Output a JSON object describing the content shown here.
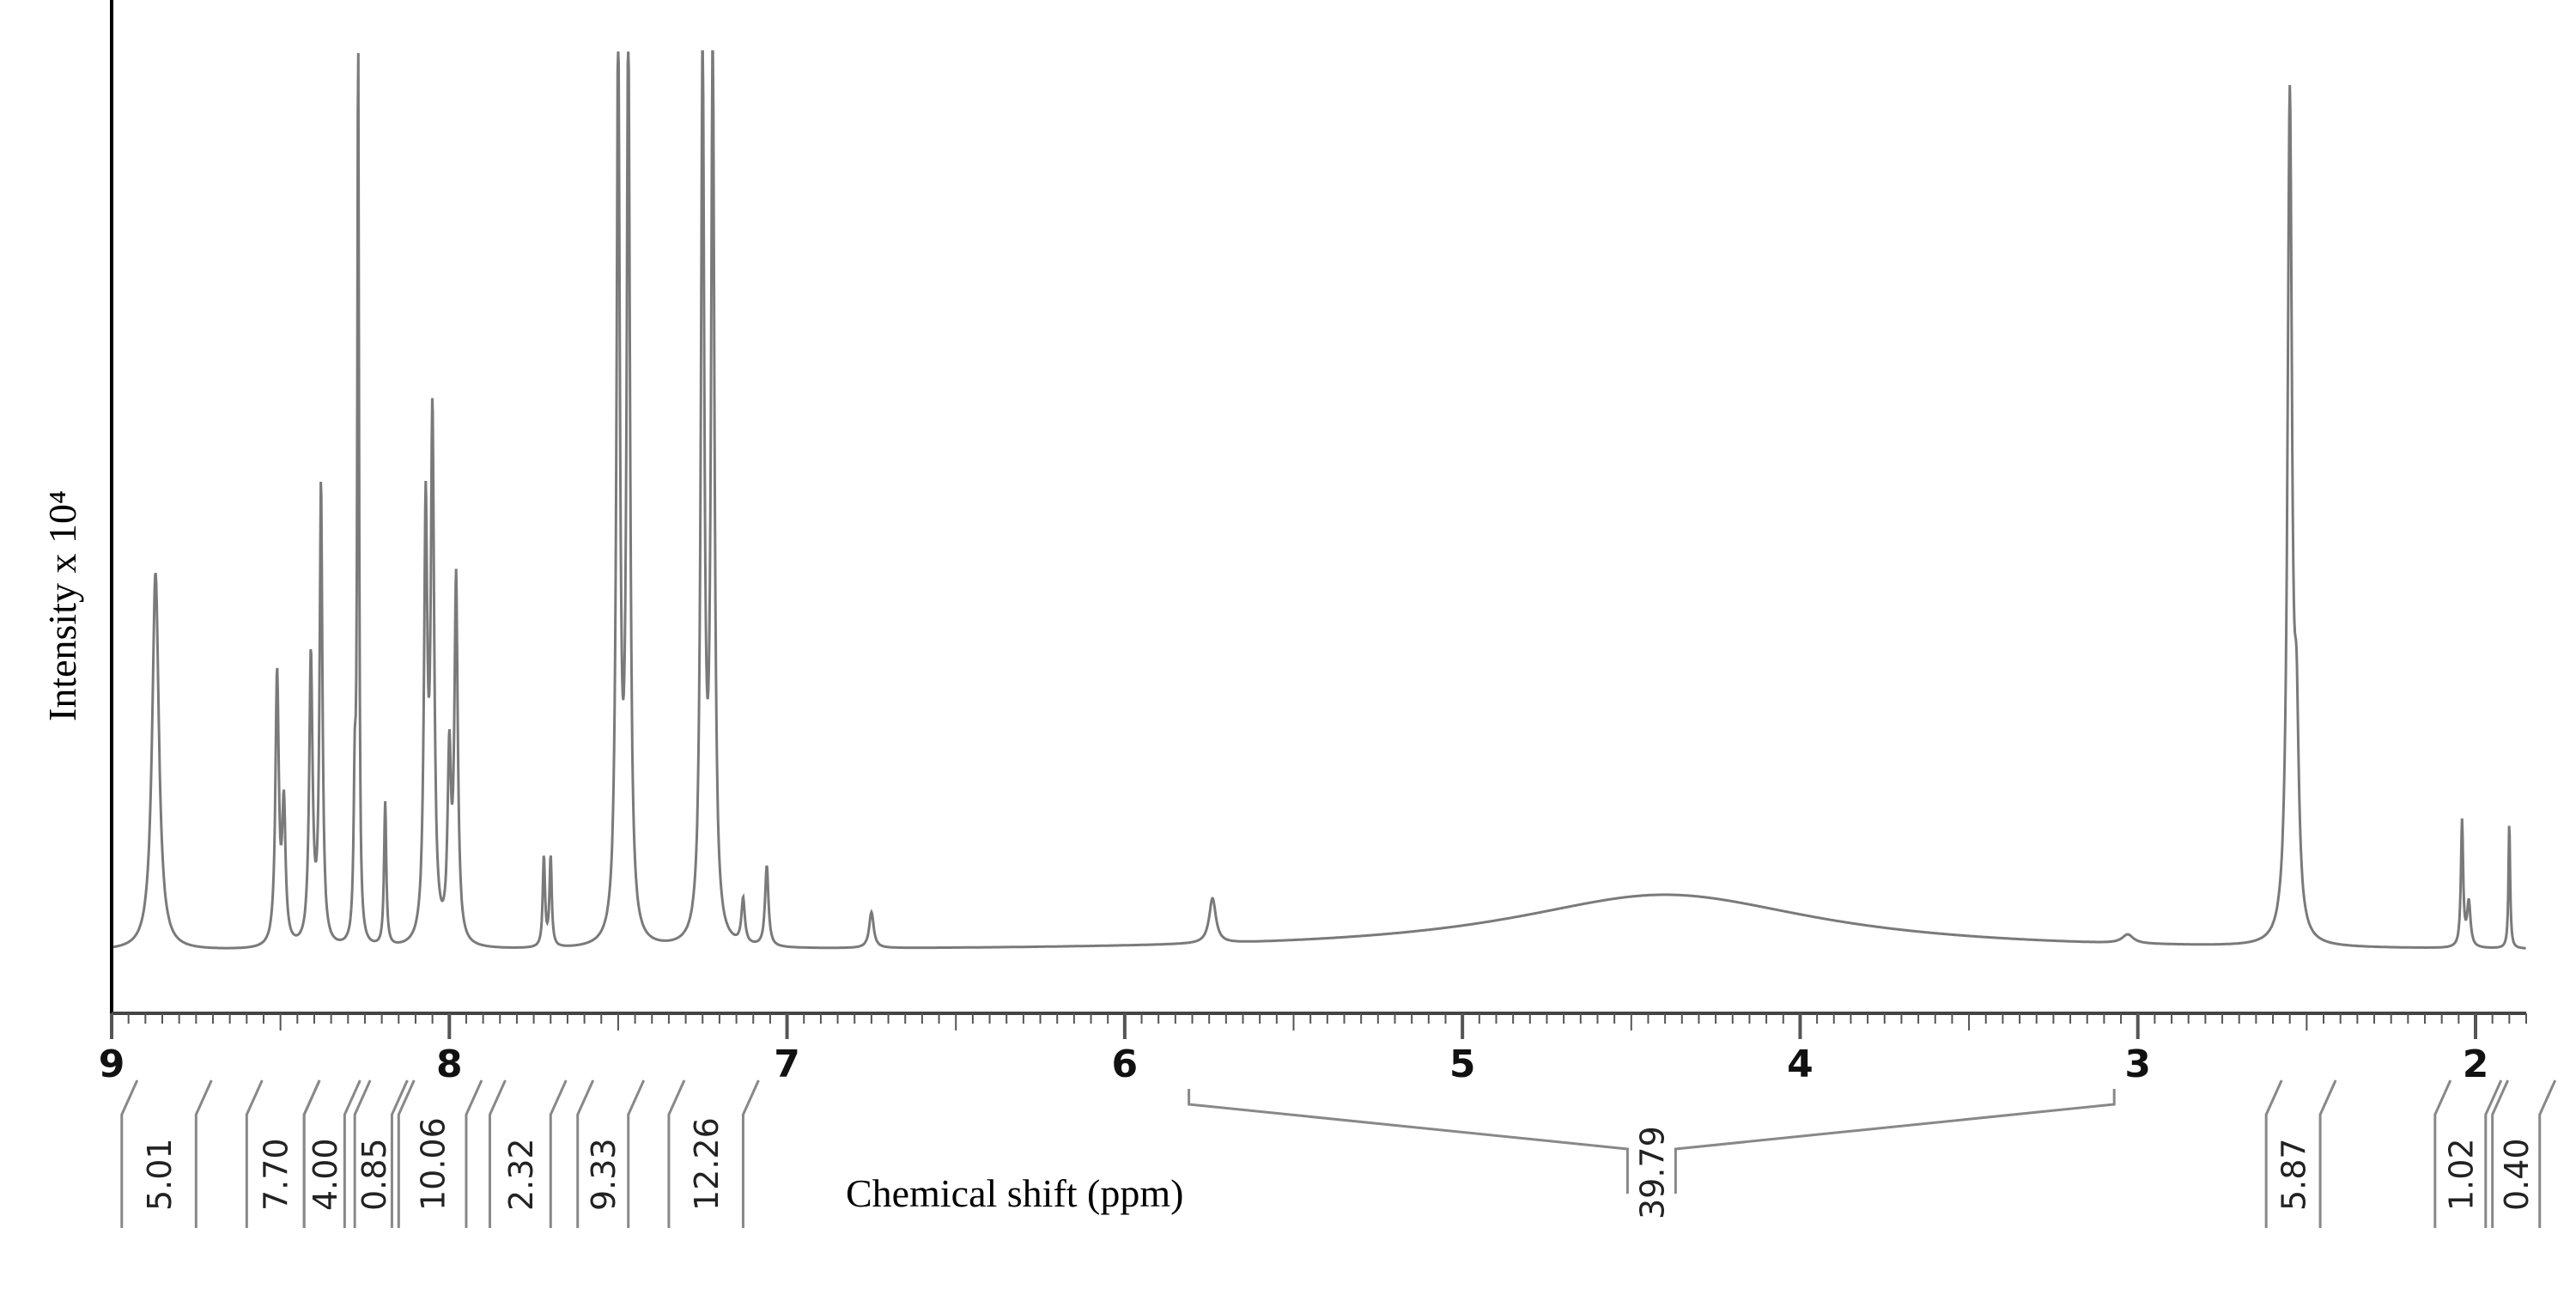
{
  "chart_data": {
    "type": "line",
    "xlabel": "Chemical shift (ppm)",
    "ylabel": "Intensity x 10⁴",
    "x_reversed": true,
    "xlim": [
      9.0,
      1.85
    ],
    "ylim": [
      -0.05,
      1.0
    ],
    "x_ticks": [
      "9",
      "8",
      "7",
      "6",
      "5",
      "4",
      "3",
      "2"
    ],
    "grid": false,
    "baseline": 0.0,
    "series": [
      {
        "peaks": [
          {
            "x": 8.87,
            "height": 0.42,
            "width": 0.012
          },
          {
            "x": 8.51,
            "height": 0.3,
            "width": 0.006
          },
          {
            "x": 8.49,
            "height": 0.15,
            "width": 0.006
          },
          {
            "x": 8.41,
            "height": 0.32,
            "width": 0.006
          },
          {
            "x": 8.38,
            "height": 0.51,
            "width": 0.005
          },
          {
            "x": 8.28,
            "height": 0.16,
            "width": 0.004
          },
          {
            "x": 8.27,
            "height": 1.0,
            "width": 0.003
          },
          {
            "x": 8.19,
            "height": 0.16,
            "width": 0.004
          },
          {
            "x": 8.07,
            "height": 0.47,
            "width": 0.006
          },
          {
            "x": 8.05,
            "height": 0.57,
            "width": 0.006
          },
          {
            "x": 8.0,
            "height": 0.2,
            "width": 0.006
          },
          {
            "x": 7.98,
            "height": 0.4,
            "width": 0.006
          },
          {
            "x": 7.72,
            "height": 0.1,
            "width": 0.004
          },
          {
            "x": 7.7,
            "height": 0.1,
            "width": 0.004
          },
          {
            "x": 7.5,
            "height": 1.0,
            "width": 0.006
          },
          {
            "x": 7.47,
            "height": 1.0,
            "width": 0.006
          },
          {
            "x": 7.25,
            "height": 1.0,
            "width": 0.006
          },
          {
            "x": 7.22,
            "height": 1.0,
            "width": 0.006
          },
          {
            "x": 7.06,
            "height": 0.09,
            "width": 0.006
          },
          {
            "x": 7.13,
            "height": 0.05,
            "width": 0.006
          },
          {
            "x": 6.75,
            "height": 0.04,
            "width": 0.008
          },
          {
            "x": 5.74,
            "height": 0.05,
            "width": 0.012
          },
          {
            "x": 4.4,
            "height": 0.063,
            "width": 0.55
          },
          {
            "x": 3.03,
            "height": 0.01,
            "width": 0.02
          },
          {
            "x": 2.55,
            "height": 0.93,
            "width": 0.008
          },
          {
            "x": 2.53,
            "height": 0.2,
            "width": 0.008
          },
          {
            "x": 2.04,
            "height": 0.14,
            "width": 0.004
          },
          {
            "x": 2.02,
            "height": 0.05,
            "width": 0.006
          },
          {
            "x": 1.9,
            "height": 0.14,
            "width": 0.003
          }
        ]
      }
    ],
    "integrals": [
      {
        "value": "5.01",
        "from": 8.97,
        "to": 8.75
      },
      {
        "value": "7.70",
        "from": 8.6,
        "to": 8.43
      },
      {
        "value": "4.00",
        "from": 8.43,
        "to": 8.31
      },
      {
        "value": "0.85",
        "from": 8.28,
        "to": 8.17
      },
      {
        "value": "10.06",
        "from": 8.15,
        "to": 7.95
      },
      {
        "value": "2.32",
        "from": 7.88,
        "to": 7.7
      },
      {
        "value": "9.33",
        "from": 7.62,
        "to": 7.47
      },
      {
        "value": "12.26",
        "from": 7.35,
        "to": 7.13
      },
      {
        "value": "39.79",
        "from": 5.81,
        "to": 3.07
      },
      {
        "value": "5.87",
        "from": 2.62,
        "to": 2.46
      },
      {
        "value": "1.02",
        "from": 2.12,
        "to": 1.97
      },
      {
        "value": "0.40",
        "from": 1.95,
        "to": 1.81
      }
    ]
  }
}
